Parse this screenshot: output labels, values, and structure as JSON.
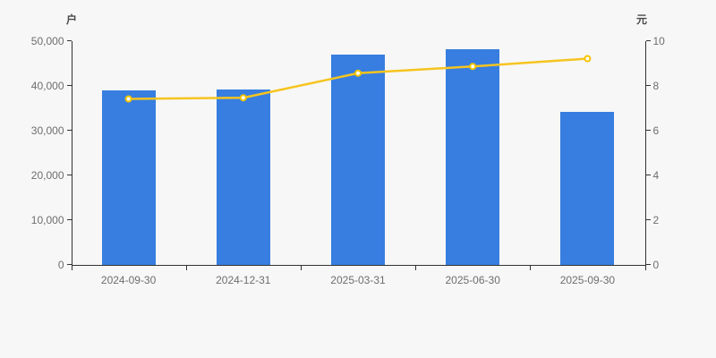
{
  "chart": {
    "background": "#f7f7f7",
    "left_axis": {
      "name": "户",
      "tick_labels": [
        "0",
        "10,000",
        "20,000",
        "30,000",
        "40,000",
        "50,000"
      ]
    },
    "right_axis": {
      "name": "元",
      "tick_labels": [
        "0",
        "2",
        "4",
        "6",
        "8",
        "10"
      ]
    },
    "colors": {
      "bar": "#377ee0",
      "line": "#f6c41f",
      "marker_stroke": "#f5c400",
      "marker_fill": "#ffffff",
      "axis_line": "#333333",
      "tick_label": "#6e6e6e"
    }
  },
  "chart_data": {
    "type": "bar+line dual-axis",
    "categories": [
      "2024-09-30",
      "2024-12-31",
      "2025-03-31",
      "2025-06-30",
      "2025-09-30"
    ],
    "series": [
      {
        "name": "户",
        "type": "bar",
        "axis": "left",
        "color": "#377ee0",
        "values": [
          38900,
          39200,
          47000,
          48200,
          34100
        ]
      },
      {
        "name": "元",
        "type": "line",
        "axis": "right",
        "color": "#f6c41f",
        "values": [
          7.4,
          7.45,
          8.55,
          8.85,
          9.2
        ]
      }
    ],
    "title": "",
    "xlabel": "",
    "left_ylabel": "户",
    "right_ylabel": "元",
    "left_ylim": [
      0,
      50000
    ],
    "right_ylim": [
      0,
      10
    ],
    "left_tick_step": 10000,
    "right_tick_step": 2,
    "grid": false,
    "legend": false
  }
}
